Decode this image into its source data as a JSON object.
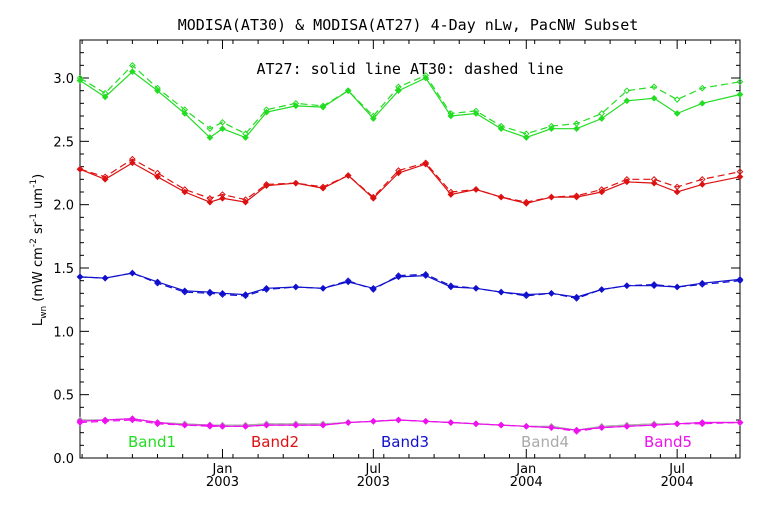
{
  "chart_data": {
    "type": "line",
    "title": "MODISA(AT30) & MODISA(AT27) 4-Day nLw, PacNW Subset",
    "note": "AT27: solid line   AT30: dashed line",
    "ylabel": "L_wn (mW cm-2 sr-1 um-1)",
    "ylabel_parts": {
      "main": "L",
      "sub": "wn",
      "p1": " (mW cm",
      "s1": "-2",
      "p2": " sr",
      "s2": "-1",
      "p3": " um",
      "s3": "-1",
      "p4": ")"
    },
    "ylim": [
      0,
      3.3
    ],
    "yticks": [
      "0.0",
      "0.5",
      "1.0",
      "1.5",
      "2.0",
      "2.5",
      "3.0"
    ],
    "xlim": [
      0,
      31.5
    ],
    "xticks": [
      {
        "month": "Jan",
        "year": "2003",
        "x": 6.8
      },
      {
        "month": "Jul",
        "year": "2003",
        "x": 14.0
      },
      {
        "month": "Jan",
        "year": "2004",
        "x": 21.3
      },
      {
        "month": "Jul",
        "year": "2004",
        "x": 28.5
      }
    ],
    "x": [
      0,
      1.2,
      2.5,
      3.7,
      5.0,
      6.2,
      6.8,
      7.9,
      8.9,
      10.3,
      11.6,
      12.8,
      14.0,
      15.2,
      16.5,
      17.7,
      18.9,
      20.1,
      21.3,
      22.5,
      23.7,
      24.9,
      26.1,
      27.4,
      28.5,
      29.7,
      31.5
    ],
    "series": [
      {
        "name": "Band1",
        "color": "#22dd22",
        "values": [
          2.98,
          2.85,
          3.05,
          2.9,
          2.72,
          2.53,
          2.6,
          2.53,
          2.73,
          2.78,
          2.77,
          2.9,
          2.68,
          2.9,
          3.0,
          2.7,
          2.72,
          2.6,
          2.53,
          2.6,
          2.6,
          2.68,
          2.82,
          2.84,
          2.72,
          2.8,
          2.87
        ],
        "values_at30": [
          3.0,
          2.88,
          3.1,
          2.92,
          2.75,
          2.6,
          2.65,
          2.56,
          2.75,
          2.8,
          2.78,
          2.9,
          2.7,
          2.93,
          3.02,
          2.72,
          2.74,
          2.62,
          2.56,
          2.62,
          2.64,
          2.72,
          2.9,
          2.93,
          2.83,
          2.92,
          2.97
        ]
      },
      {
        "name": "Band2",
        "color": "#dd1111",
        "values": [
          2.28,
          2.2,
          2.33,
          2.22,
          2.1,
          2.02,
          2.05,
          2.02,
          2.15,
          2.17,
          2.13,
          2.23,
          2.05,
          2.25,
          2.32,
          2.08,
          2.12,
          2.06,
          2.01,
          2.06,
          2.06,
          2.1,
          2.18,
          2.17,
          2.1,
          2.16,
          2.22
        ],
        "values_at30": [
          2.28,
          2.22,
          2.36,
          2.25,
          2.12,
          2.05,
          2.08,
          2.04,
          2.16,
          2.17,
          2.14,
          2.23,
          2.06,
          2.27,
          2.33,
          2.1,
          2.12,
          2.06,
          2.02,
          2.06,
          2.07,
          2.12,
          2.2,
          2.2,
          2.14,
          2.2,
          2.26
        ]
      },
      {
        "name": "Band3",
        "color": "#1111cc",
        "values": [
          1.43,
          1.42,
          1.46,
          1.39,
          1.32,
          1.31,
          1.3,
          1.29,
          1.34,
          1.35,
          1.34,
          1.39,
          1.34,
          1.43,
          1.44,
          1.35,
          1.34,
          1.31,
          1.29,
          1.3,
          1.27,
          1.33,
          1.36,
          1.36,
          1.35,
          1.38,
          1.41
        ],
        "values_at30": [
          1.43,
          1.42,
          1.46,
          1.38,
          1.31,
          1.3,
          1.29,
          1.28,
          1.33,
          1.35,
          1.34,
          1.4,
          1.33,
          1.44,
          1.45,
          1.36,
          1.34,
          1.31,
          1.28,
          1.3,
          1.26,
          1.33,
          1.36,
          1.37,
          1.35,
          1.37,
          1.4
        ]
      },
      {
        "name": "Band4",
        "color": "#aaaaaa",
        "values": [
          0.3,
          0.3,
          0.31,
          0.28,
          0.27,
          0.26,
          0.26,
          0.26,
          0.27,
          0.27,
          0.27,
          0.28,
          0.29,
          0.3,
          0.29,
          0.28,
          0.27,
          0.26,
          0.25,
          0.25,
          0.22,
          0.25,
          0.26,
          0.27,
          0.27,
          0.28,
          0.28
        ],
        "values_at30": [
          0.3,
          0.3,
          0.31,
          0.28,
          0.27,
          0.26,
          0.26,
          0.26,
          0.27,
          0.27,
          0.27,
          0.28,
          0.29,
          0.3,
          0.29,
          0.28,
          0.27,
          0.26,
          0.25,
          0.25,
          0.22,
          0.25,
          0.26,
          0.27,
          0.27,
          0.28,
          0.28
        ]
      },
      {
        "name": "Band5",
        "color": "#ee11ee",
        "values": [
          0.29,
          0.3,
          0.31,
          0.28,
          0.26,
          0.26,
          0.25,
          0.25,
          0.26,
          0.26,
          0.26,
          0.28,
          0.29,
          0.3,
          0.29,
          0.28,
          0.27,
          0.26,
          0.25,
          0.24,
          0.22,
          0.24,
          0.25,
          0.26,
          0.27,
          0.28,
          0.28
        ],
        "values_at30": [
          0.28,
          0.29,
          0.3,
          0.27,
          0.26,
          0.25,
          0.25,
          0.25,
          0.26,
          0.26,
          0.26,
          0.28,
          0.29,
          0.3,
          0.29,
          0.28,
          0.27,
          0.26,
          0.25,
          0.24,
          0.21,
          0.24,
          0.25,
          0.26,
          0.27,
          0.27,
          0.28
        ]
      }
    ],
    "legend_placement": "bottom, inside plot",
    "grid": false
  }
}
